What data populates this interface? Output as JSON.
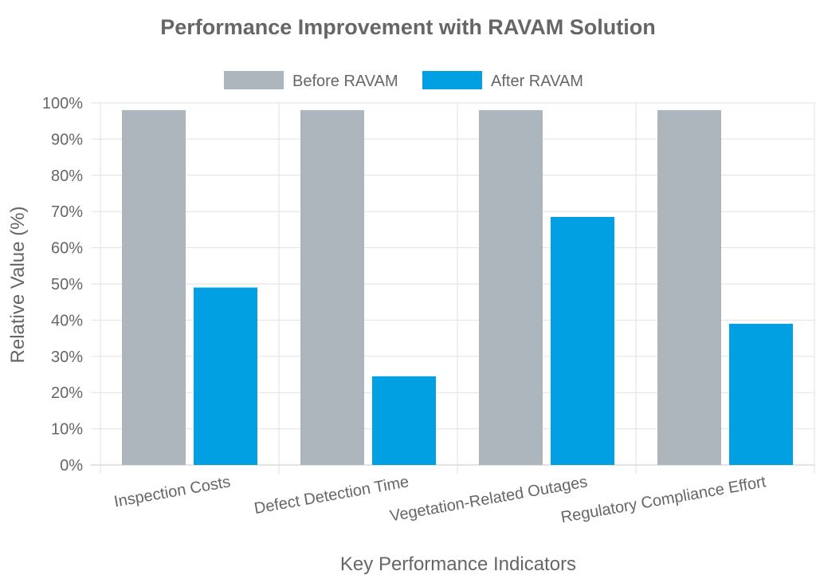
{
  "chart_data": {
    "type": "bar",
    "title": "Performance Improvement with RAVAM Solution",
    "xlabel": "Key Performance Indicators",
    "ylabel": "Relative Value (%)",
    "ylim": [
      0,
      100
    ],
    "yticks": [
      "0%",
      "10%",
      "20%",
      "30%",
      "40%",
      "50%",
      "60%",
      "70%",
      "80%",
      "90%",
      "100%"
    ],
    "categories": [
      "Inspection Costs",
      "Defect Detection Time",
      "Vegetation-Related Outages",
      "Regulatory Compliance Effort"
    ],
    "series": [
      {
        "name": "Before RAVAM",
        "color": "#adb5bd",
        "values": [
          98,
          98,
          98,
          98
        ]
      },
      {
        "name": "After RAVAM",
        "color": "#00a0e3",
        "values": [
          49,
          24.5,
          68.5,
          39
        ]
      }
    ],
    "grid": true,
    "legend": "top-center"
  }
}
